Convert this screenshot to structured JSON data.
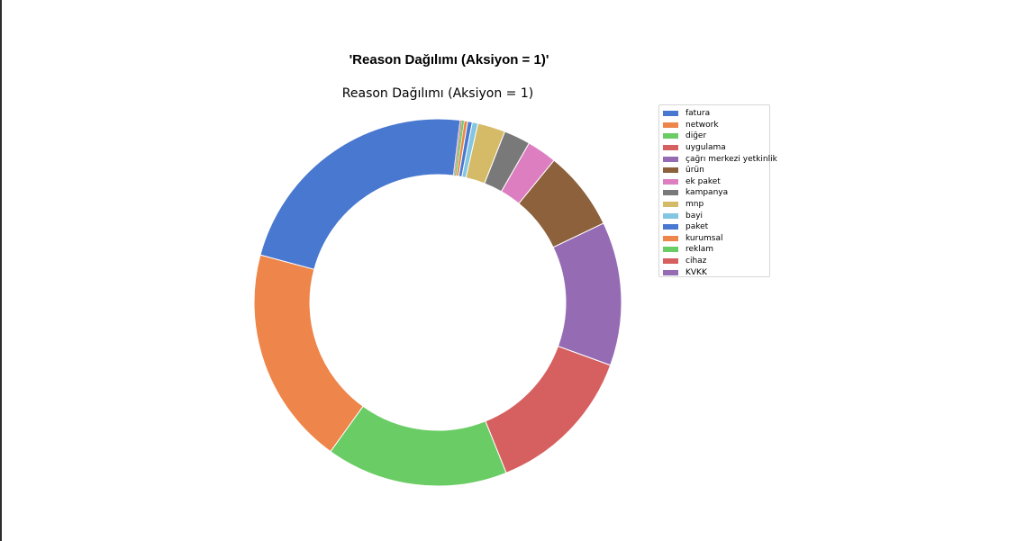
{
  "figure": {
    "suptitle": "'Reason Dağılımı (Aksiyon = 1)'"
  },
  "chart_data": {
    "type": "pie",
    "donut": true,
    "title": "Reason Dağılımı (Aksiyon = 1)",
    "legend_position": "right",
    "start_angle_deg": 83,
    "labels": [
      "fatura",
      "network",
      "diğer",
      "uygulama",
      "çağrı merkezi yetkinlik",
      "ürün",
      "ek paket",
      "kampanya",
      "mnp",
      "bayi",
      "paket",
      "kurumsal",
      "reklam",
      "cihaz",
      "KVKK"
    ],
    "values": [
      22.5,
      19.0,
      15.8,
      13.2,
      12.5,
      6.9,
      2.6,
      2.3,
      2.4,
      0.5,
      0.4,
      0.3,
      0.2,
      0.1,
      0.05
    ],
    "colors": [
      "#4878d0",
      "#ee854a",
      "#6acc64",
      "#d65f5f",
      "#956cb4",
      "#8c613c",
      "#dc7ec0",
      "#797979",
      "#d5bb67",
      "#82c6e2",
      "#4878d0",
      "#ee854a",
      "#6acc64",
      "#d65f5f",
      "#956cb4"
    ]
  }
}
